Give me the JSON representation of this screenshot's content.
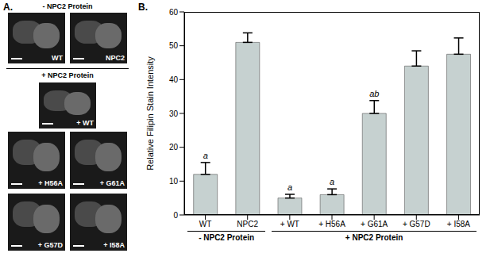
{
  "chart_data": {
    "type": "bar",
    "title": "B.",
    "y_label": "Relative Filipin Stain Intensity",
    "categories": [
      "WT",
      "NPC2",
      "+ WT",
      "+ H56A",
      "+ G61A",
      "+ G57D",
      "+ I58A"
    ],
    "values": [
      12,
      51,
      5,
      6,
      30,
      44,
      47.5
    ],
    "errors": [
      3.5,
      2.8,
      1.1,
      1.7,
      3.8,
      4.5,
      4.8
    ],
    "color": "#c6d1d0",
    "ylim": [
      0,
      60
    ],
    "yticks": [
      0,
      10,
      20,
      30,
      40,
      50,
      60
    ],
    "grid": false,
    "annotations": [
      {
        "category": "WT",
        "text": "a"
      },
      {
        "category": "+ WT",
        "text": "a"
      },
      {
        "category": "+ H56A",
        "text": "a"
      },
      {
        "category": "+ G61A",
        "text": "ab"
      }
    ],
    "groups": [
      {
        "label": "- NPC2 Protein",
        "categories": [
          "WT",
          "NPC2"
        ]
      },
      {
        "label": "+ NPC2 Protein",
        "categories": [
          "+ WT",
          "+ H56A",
          "+ G61A",
          "+ G57D",
          "+ I58A"
        ]
      }
    ]
  },
  "panel_a": {
    "label": "A.",
    "groups": [
      {
        "title": "- NPC2 Protein",
        "images": [
          "WT",
          "NPC2"
        ]
      },
      {
        "title": "+ NPC2 Protein",
        "images": [
          "+ WT",
          "+ H56A",
          "+ G61A",
          "+ G57D",
          "+ I58A"
        ]
      }
    ]
  }
}
